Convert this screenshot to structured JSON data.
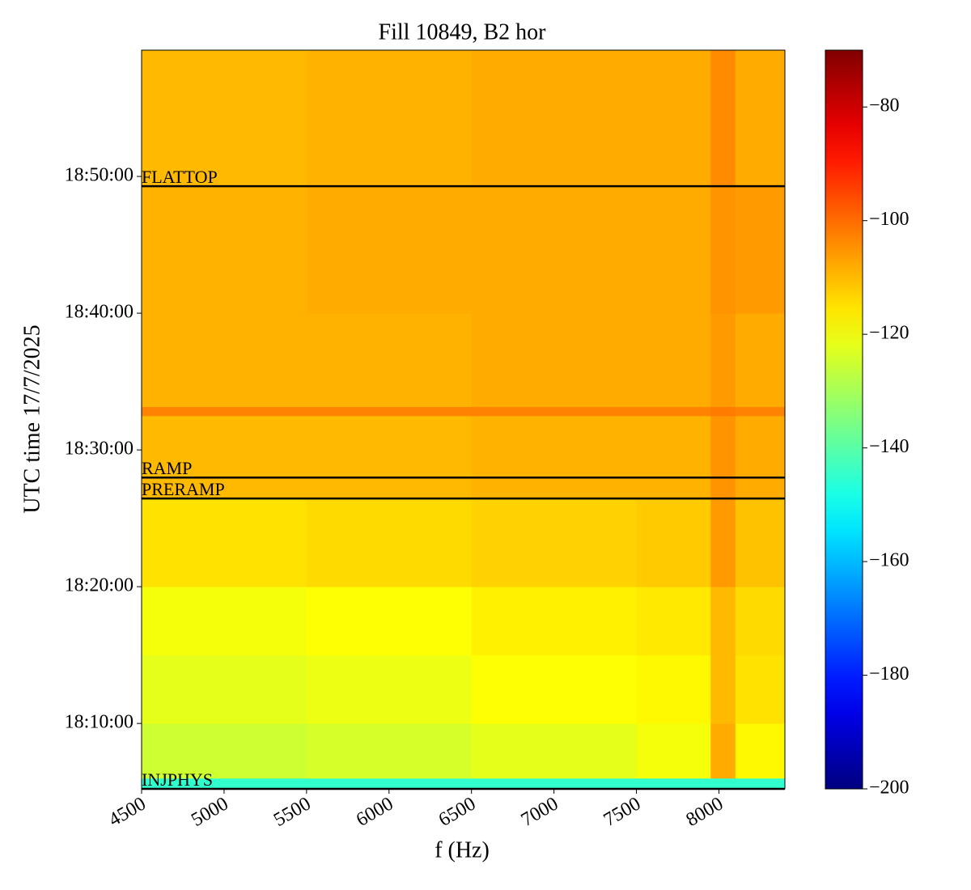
{
  "chart_data": {
    "type": "heatmap",
    "title": "Fill 10849, B2 hor",
    "xlabel": "f (Hz)",
    "ylabel": "UTC time 17/7/2025",
    "xlim": [
      4500,
      8400
    ],
    "xticks": [
      4500,
      5000,
      5500,
      6000,
      6500,
      7000,
      7500,
      8000
    ],
    "ylim": [
      "18:05:13",
      "18:59:14"
    ],
    "yticks": [
      "18:10:00",
      "18:20:00",
      "18:30:00",
      "18:40:00",
      "18:50:00"
    ],
    "x_edges": [
      4500,
      5500,
      6500,
      7500,
      7950,
      8100,
      8400
    ],
    "y_edges": [
      "18:05:13",
      "18:06:00",
      "18:10:00",
      "18:15:00",
      "18:20:00",
      "18:26:27",
      "18:32:30",
      "18:33:10",
      "18:40:00",
      "18:49:17",
      "18:59:14"
    ],
    "z": [
      [
        -145,
        -145,
        -145,
        -145,
        -145,
        -145
      ],
      [
        -125,
        -124,
        -122,
        -120,
        -108,
        -118
      ],
      [
        -122,
        -121,
        -119,
        -118,
        -110,
        -115
      ],
      [
        -120,
        -119,
        -117,
        -116,
        -110,
        -114
      ],
      [
        -115,
        -114,
        -113,
        -112,
        -106,
        -111
      ],
      [
        -110,
        -110,
        -109,
        -109,
        -105,
        -108
      ],
      [
        -103,
        -103,
        -103,
        -103,
        -102,
        -103
      ],
      [
        -109,
        -109,
        -108,
        -108,
        -106,
        -108
      ],
      [
        -109,
        -108,
        -108,
        -108,
        -105,
        -106
      ],
      [
        -110,
        -109,
        -108,
        -108,
        -104,
        -108
      ]
    ],
    "colormap": "jet",
    "clim": [
      -200,
      -70
    ],
    "cticks": [
      {
        "value": -200,
        "label": "−200"
      },
      {
        "value": -180,
        "label": "−180"
      },
      {
        "value": -160,
        "label": "−160"
      },
      {
        "value": -140,
        "label": "−140"
      },
      {
        "value": -120,
        "label": "−120"
      },
      {
        "value": -100,
        "label": "−100"
      },
      {
        "value": -80,
        "label": "−80"
      }
    ],
    "phases": [
      {
        "label": "FLATTOP",
        "time": "18:49:17"
      },
      {
        "label": "RAMP",
        "time": "18:27:59"
      },
      {
        "label": "PRERAMP",
        "time": "18:26:27"
      },
      {
        "label": "INJPHYS",
        "time": "18:05:13"
      }
    ],
    "phase_color": "#000000"
  }
}
